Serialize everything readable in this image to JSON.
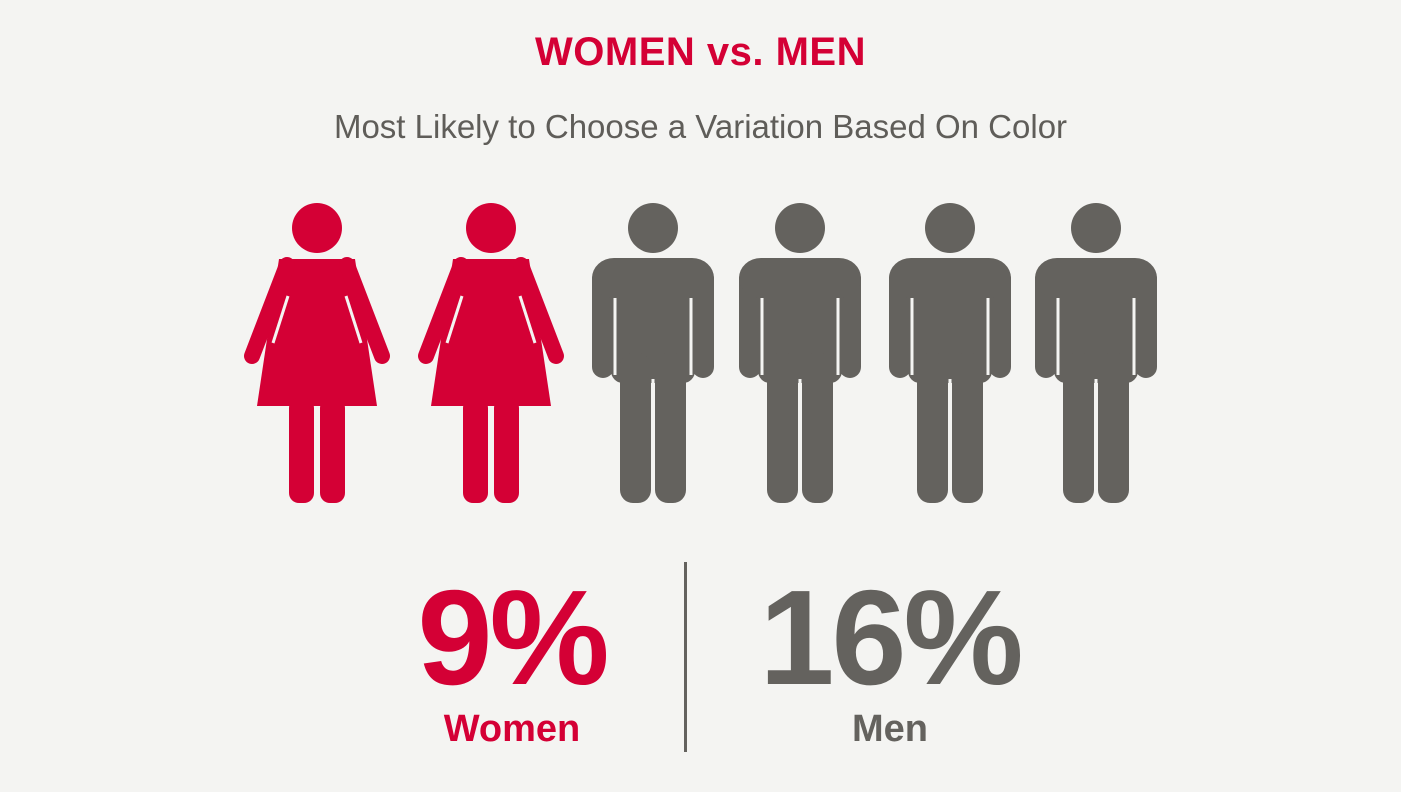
{
  "title": "WOMEN vs. MEN",
  "subtitle": "Most Likely to Choose a Variation Based On Color",
  "colors": {
    "women": "#d40035",
    "men": "#64625e",
    "background": "#f4f4f2"
  },
  "icons": [
    "woman-icon",
    "woman-icon",
    "man-icon",
    "man-icon",
    "man-icon",
    "man-icon"
  ],
  "stats": {
    "women": {
      "value": "9%",
      "label": "Women"
    },
    "men": {
      "value": "16%",
      "label": "Men"
    }
  },
  "chart_data": {
    "type": "bar",
    "categories": [
      "Women",
      "Men"
    ],
    "values": [
      9,
      16
    ],
    "title": "WOMEN vs. MEN",
    "subtitle": "Most Likely to Choose a Variation Based On Color",
    "unit": "%",
    "pictogram": {
      "women_icons": 2,
      "men_icons": 4
    }
  }
}
